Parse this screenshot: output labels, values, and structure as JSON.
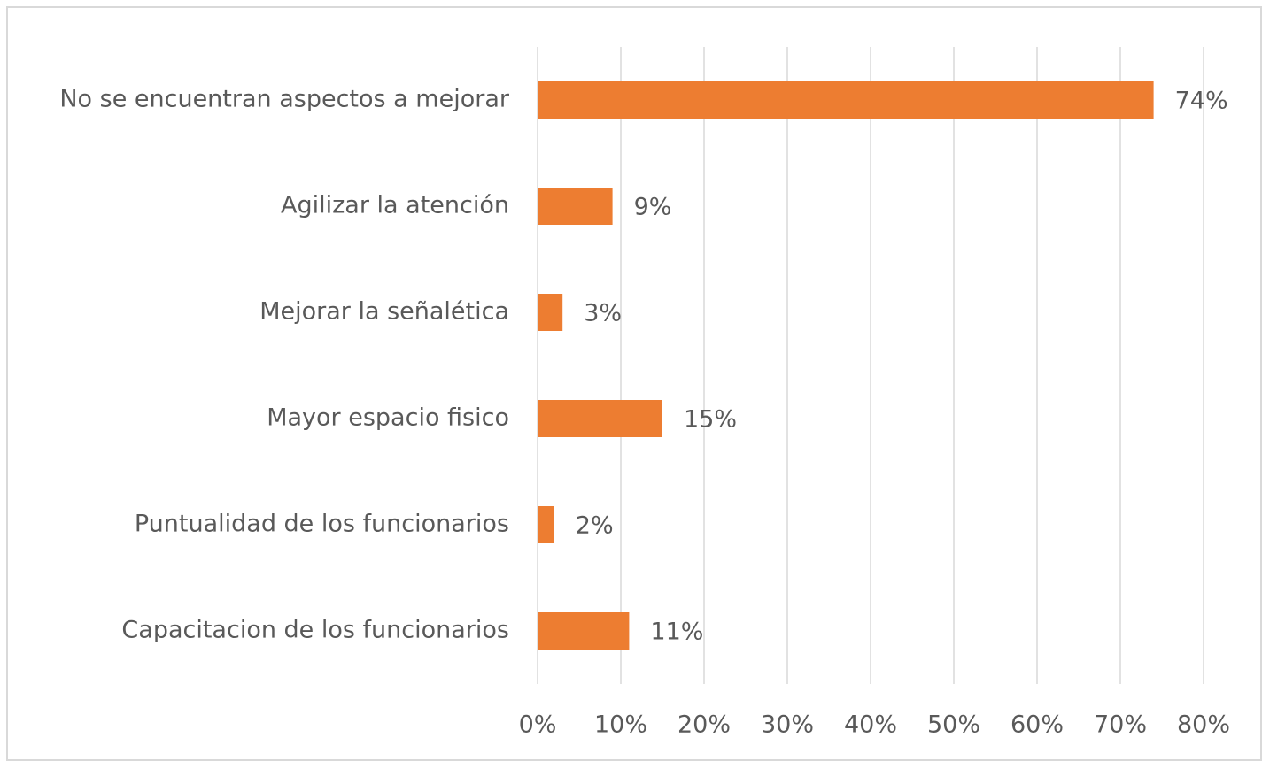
{
  "chart_data": {
    "type": "bar",
    "orientation": "horizontal",
    "categories": [
      "No se encuentran aspectos a mejorar",
      "Agilizar la atención",
      "Mejorar la señalética",
      "Mayor espacio fisico",
      "Puntualidad de los funcionarios",
      "Capacitacion de los funcionarios"
    ],
    "values": [
      74,
      9,
      3,
      15,
      2,
      11
    ],
    "value_labels": [
      "74%",
      "9%",
      "3%",
      "15%",
      "2%",
      "11%"
    ],
    "color": "#ed7d31",
    "xlim": [
      0,
      80
    ],
    "xticks": [
      {
        "value": 0,
        "label": "0%"
      },
      {
        "value": 10,
        "label": "10%"
      },
      {
        "value": 20,
        "label": "20%"
      },
      {
        "value": 30,
        "label": "30%"
      },
      {
        "value": 40,
        "label": "40%"
      },
      {
        "value": 50,
        "label": "50%"
      },
      {
        "value": 60,
        "label": "60%"
      },
      {
        "value": 70,
        "label": "70%"
      },
      {
        "value": 80,
        "label": "80%"
      }
    ],
    "grid": true
  }
}
